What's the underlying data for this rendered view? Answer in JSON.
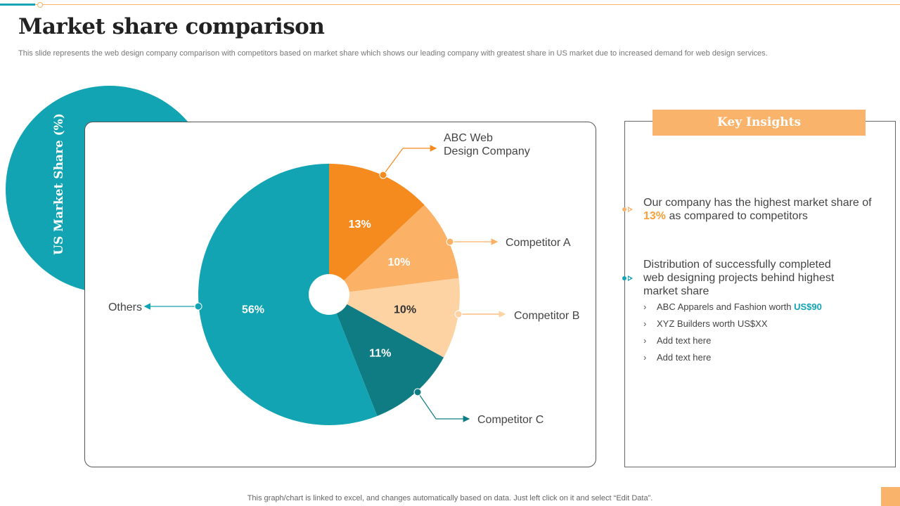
{
  "page": {
    "title": "Market share comparison",
    "subtitle": "This slide represents the web design company comparison with competitors based on market share which shows our leading company with greatest share in US market due to increased demand for web design services.",
    "footer": "This graph/chart is linked to excel,  and changes automatically based on data. Just left click on it and select “Edit Data”."
  },
  "side_label": "US Market Share (%)",
  "chart_data": {
    "type": "pie",
    "title": "US Market Share (%)",
    "categories": [
      "ABC Web Design Company",
      "Competitor A",
      "Competitor B",
      "Competitor C",
      "Others"
    ],
    "values": [
      13,
      10,
      10,
      11,
      56
    ],
    "data_labels": [
      "13%",
      "10%",
      "10%",
      "11%",
      "56%"
    ],
    "callout_labels": [
      [
        "ABC Web",
        "Design Company"
      ],
      [
        "Competitor A"
      ],
      [
        "Competitor B"
      ],
      [
        "Competitor C"
      ],
      [
        "Others"
      ]
    ],
    "colors": [
      "#f58a1f",
      "#fbb166",
      "#fdd3a4",
      "#0f7c84",
      "#13a4b4"
    ],
    "label_colors": [
      "#ffffff",
      "#ffffff",
      "#333333",
      "#ffffff",
      "#ffffff"
    ],
    "start_angle_deg": 0,
    "donut_hole": true
  },
  "insights": {
    "header": "Key Insights",
    "point1": {
      "before": "Our company has the highest market share of ",
      "highlight": "13%",
      "after": " as compared to competitors"
    },
    "point2": "Distribution of successfully  completed web designing projects behind highest market share",
    "sub_items": [
      {
        "text": "ABC Apparels and Fashion worth ",
        "highlight": "US$90"
      },
      {
        "text": "XYZ Builders worth US$XX",
        "highlight": ""
      },
      {
        "text": "Add text here",
        "highlight": ""
      },
      {
        "text": "Add text here",
        "highlight": ""
      }
    ],
    "chevron": "›"
  },
  "colors": {
    "teal": "#13a4b4",
    "dark_teal": "#0f7c84",
    "orange": "#f58a1f",
    "light_orange": "#f9b36a"
  }
}
